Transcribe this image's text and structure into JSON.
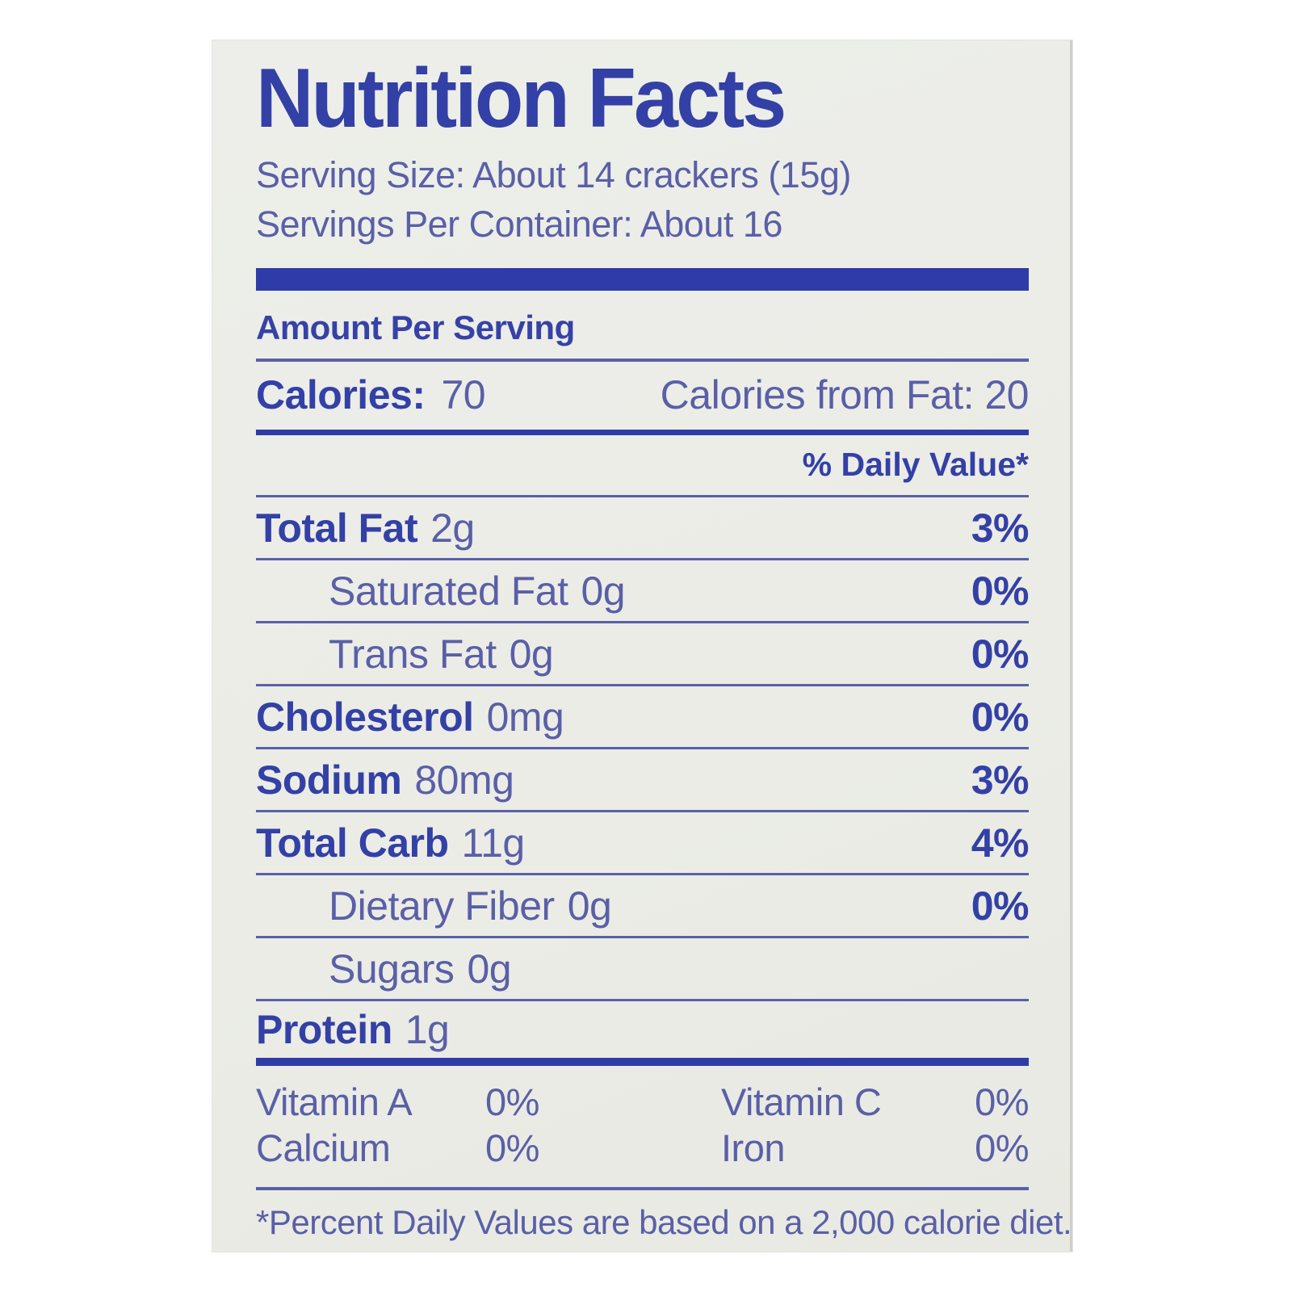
{
  "label": {
    "title": "Nutrition Facts",
    "serving_size": "Serving Size: About 14 crackers (15g)",
    "servings_per_container": "Servings Per Container: About 16",
    "amount_per_serving": "Amount Per Serving",
    "calories_label": "Calories:",
    "calories_value": "70",
    "calories_from_fat": "Calories from Fat: 20",
    "daily_value_header": "% Daily Value*",
    "rows": [
      {
        "label": "Total Fat",
        "amount": "2g",
        "dv": "3%"
      },
      {
        "label": "Saturated Fat",
        "amount": "0g",
        "dv": "0%"
      },
      {
        "label": "Trans Fat",
        "amount": "0g",
        "dv": "0%"
      },
      {
        "label": "Cholesterol",
        "amount": "0mg",
        "dv": "0%"
      },
      {
        "label": "Sodium",
        "amount": "80mg",
        "dv": "3%"
      },
      {
        "label": "Total Carb",
        "amount": "11g",
        "dv": "4%"
      },
      {
        "label": "Dietary Fiber",
        "amount": "0g",
        "dv": "0%"
      },
      {
        "label": "Sugars",
        "amount": "0g",
        "dv": ""
      },
      {
        "label": "Protein",
        "amount": "1g",
        "dv": ""
      }
    ],
    "micronutrients": [
      {
        "label": "Vitamin A",
        "value": "0%"
      },
      {
        "label": "Vitamin C",
        "value": "0%"
      },
      {
        "label": "Calcium",
        "value": "0%"
      },
      {
        "label": "Iron",
        "value": "0%"
      }
    ],
    "footnote": "*Percent Daily Values are based on a 2,000 calorie diet.",
    "colors": {
      "title_blue": "#3340a6",
      "body_blue": "#5a5fa7",
      "rule_blue": "#5a60a8",
      "bar_blue": "#2e3ba8",
      "card_background": "#ebece6",
      "page_background": "#ffffff"
    }
  }
}
